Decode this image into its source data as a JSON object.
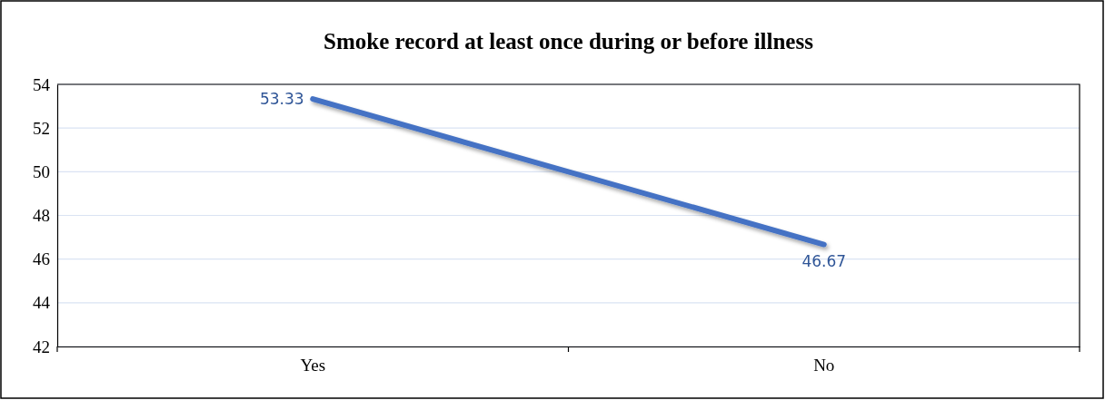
{
  "chart_data": {
    "type": "line",
    "title": "Smoke record at least once during or before illness",
    "categories": [
      "Yes",
      "No"
    ],
    "series": [
      {
        "color": "#4472c4",
        "values": [
          53.33,
          46.67
        ]
      }
    ],
    "ylim": [
      42,
      54
    ],
    "yticks": [
      42,
      44,
      46,
      48,
      50,
      52,
      54
    ],
    "grid": "y",
    "data_labels": true,
    "marker": "none",
    "line_style": "solid"
  }
}
